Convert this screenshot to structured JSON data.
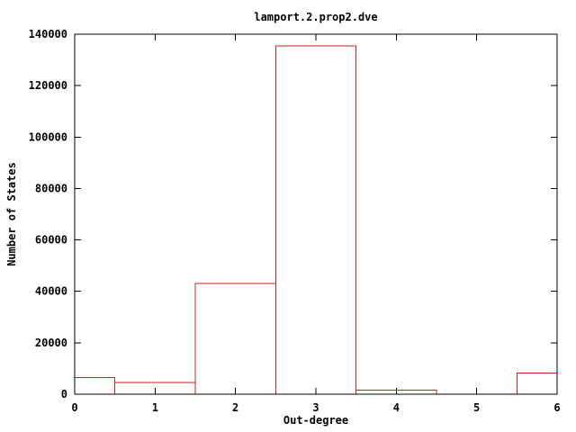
{
  "window": {
    "background": "#ffffff"
  },
  "chart_data": {
    "type": "bar",
    "style": "histogram-outlined-boxes",
    "title": "lamport.2.prop2.dve",
    "xlabel": "Out-degree",
    "ylabel": "Number of States",
    "xlim": [
      0,
      6
    ],
    "ylim": [
      0,
      140000
    ],
    "grid": false,
    "legend_position": "none",
    "categories": [
      0,
      1,
      2,
      3,
      4,
      5,
      6
    ],
    "values": [
      6500,
      4500,
      43000,
      135500,
      1500,
      0,
      8200
    ],
    "bins": [
      {
        "x0": 0.0,
        "x1": 0.5,
        "value": 6500
      },
      {
        "x0": 0.5,
        "x1": 1.5,
        "value": 4500
      },
      {
        "x0": 1.5,
        "x1": 2.5,
        "value": 43000
      },
      {
        "x0": 2.5,
        "x1": 3.5,
        "value": 135500
      },
      {
        "x0": 3.5,
        "x1": 4.5,
        "value": 1500
      },
      {
        "x0": 4.5,
        "x1": 5.5,
        "value": 0
      },
      {
        "x0": 5.5,
        "x1": 6.0,
        "value": 8200
      }
    ],
    "xticks": [
      {
        "v": 0,
        "label": "0"
      },
      {
        "v": 1,
        "label": "1"
      },
      {
        "v": 2,
        "label": "2"
      },
      {
        "v": 3,
        "label": "3"
      },
      {
        "v": 4,
        "label": "4"
      },
      {
        "v": 5,
        "label": "5"
      },
      {
        "v": 6,
        "label": "6"
      }
    ],
    "yticks": [
      {
        "v": 0,
        "label": "0"
      },
      {
        "v": 20000,
        "label": "20000"
      },
      {
        "v": 40000,
        "label": "40000"
      },
      {
        "v": 60000,
        "label": "60000"
      },
      {
        "v": 80000,
        "label": "80000"
      },
      {
        "v": 100000,
        "label": "100000"
      },
      {
        "v": 120000,
        "label": "120000"
      },
      {
        "v": 140000,
        "label": "140000"
      }
    ],
    "colors": {
      "series": "#cc2222",
      "axis": "#000000",
      "text": "#000000",
      "background": "#ffffff"
    }
  }
}
